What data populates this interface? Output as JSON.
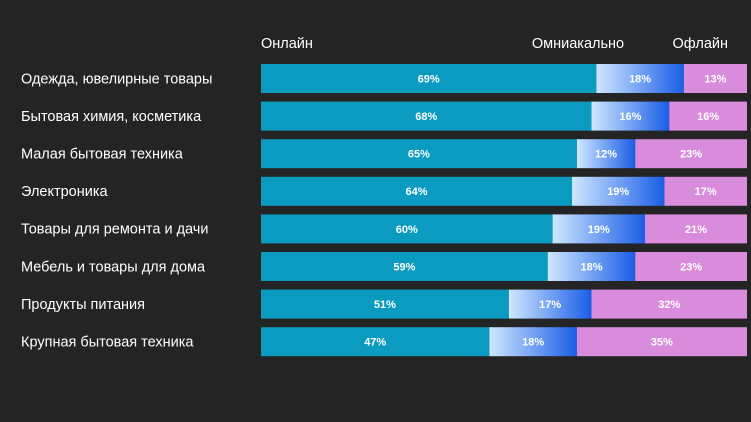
{
  "chart_data": {
    "type": "bar",
    "orientation": "horizontal",
    "stacked": true,
    "categories": [
      "Одежда, ювелирные товары",
      "Бытовая химия, косметика",
      "Малая бытовая техника",
      "Электроника",
      "Товары для ремонта и дачи",
      "Мебель и товары для дома",
      "Продукты питания",
      "Крупная бытовая техника"
    ],
    "xlim": [
      0,
      100
    ],
    "series": [
      {
        "name": "Онлайн",
        "color": "#0b9bc0",
        "values": [
          69,
          68,
          65,
          64,
          60,
          59,
          51,
          47
        ],
        "value_labels": [
          "69%",
          "68%",
          "65%",
          "64%",
          "60%",
          "59%",
          "51%",
          "47%"
        ]
      },
      {
        "name": "Омниакально",
        "color": "#1a5ee6",
        "gradient": true,
        "values": [
          18,
          16,
          12,
          19,
          19,
          18,
          17,
          18
        ],
        "value_labels": [
          "18%",
          "16%",
          "12%",
          "19%",
          "19%",
          "18%",
          "17%",
          "18%"
        ]
      },
      {
        "name": "Офлайн",
        "color": "#d98cdc",
        "values": [
          13,
          16,
          23,
          17,
          21,
          23,
          32,
          35
        ],
        "value_labels": [
          "13%",
          "16%",
          "23%",
          "17%",
          "21%",
          "23%",
          "32%",
          "35%"
        ]
      }
    ]
  }
}
